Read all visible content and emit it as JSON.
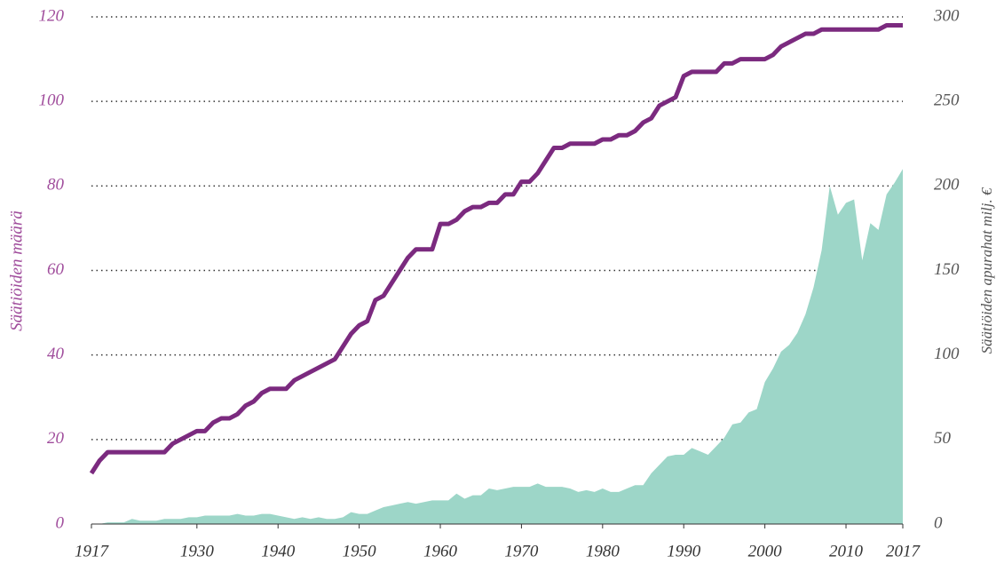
{
  "chart_data": {
    "type": "line-area",
    "y_label": "Säätiöiden määrä",
    "y2_label": "Säätiöiden apurahat milj. €",
    "x": [
      1917,
      1918,
      1919,
      1920,
      1921,
      1922,
      1923,
      1924,
      1925,
      1926,
      1927,
      1928,
      1929,
      1930,
      1931,
      1932,
      1933,
      1934,
      1935,
      1936,
      1937,
      1938,
      1939,
      1940,
      1941,
      1942,
      1943,
      1944,
      1945,
      1946,
      1947,
      1948,
      1949,
      1950,
      1951,
      1952,
      1953,
      1954,
      1955,
      1956,
      1957,
      1958,
      1959,
      1960,
      1961,
      1962,
      1963,
      1964,
      1965,
      1966,
      1967,
      1968,
      1969,
      1970,
      1971,
      1972,
      1973,
      1974,
      1975,
      1976,
      1977,
      1978,
      1979,
      1980,
      1981,
      1982,
      1983,
      1984,
      1985,
      1986,
      1987,
      1988,
      1989,
      1990,
      1991,
      1992,
      1993,
      1994,
      1995,
      1996,
      1997,
      1998,
      1999,
      2000,
      2001,
      2002,
      2003,
      2004,
      2005,
      2006,
      2007,
      2008,
      2009,
      2010,
      2011,
      2012,
      2013,
      2014,
      2015,
      2016,
      2017
    ],
    "series": [
      {
        "name": "Säätiöiden määrä",
        "color": "#7b2a7f",
        "kind": "line",
        "axis": "y",
        "values": [
          12,
          15,
          17,
          17,
          17,
          17,
          17,
          17,
          17,
          17,
          19,
          20,
          21,
          22,
          22,
          24,
          25,
          25,
          26,
          28,
          29,
          31,
          32,
          32,
          32,
          34,
          35,
          36,
          37,
          38,
          39,
          42,
          45,
          47,
          48,
          53,
          54,
          57,
          60,
          63,
          65,
          65,
          65,
          71,
          71,
          72,
          74,
          75,
          75,
          76,
          76,
          78,
          78,
          81,
          81,
          83,
          86,
          89,
          89,
          90,
          90,
          90,
          90,
          91,
          91,
          92,
          92,
          93,
          95,
          96,
          99,
          100,
          101,
          106,
          107,
          107,
          107,
          107,
          109,
          109,
          110,
          110,
          110,
          110,
          111,
          113,
          114,
          115,
          116,
          116,
          117,
          117,
          117,
          117,
          117,
          117,
          117,
          117,
          118,
          118,
          118
        ]
      },
      {
        "name": "Säätiöiden apurahat milj. €",
        "color": "#9dd6c8",
        "kind": "area",
        "axis": "y2",
        "values": [
          0,
          0,
          1,
          1,
          1,
          3,
          2,
          2,
          2,
          3,
          3,
          3,
          4,
          4,
          5,
          5,
          5,
          5,
          6,
          5,
          5,
          6,
          6,
          5,
          4,
          3,
          4,
          3,
          4,
          3,
          3,
          4,
          7,
          6,
          6,
          8,
          10,
          11,
          12,
          13,
          12,
          13,
          14,
          14,
          14,
          18,
          15,
          17,
          17,
          21,
          20,
          21,
          22,
          22,
          22,
          24,
          22,
          22,
          22,
          21,
          19,
          20,
          19,
          21,
          19,
          19,
          21,
          23,
          23,
          30,
          35,
          40,
          41,
          41,
          45,
          43,
          41,
          46,
          51,
          59,
          60,
          66,
          68,
          84,
          92,
          102,
          106,
          113,
          124,
          140,
          162,
          200,
          183,
          190,
          192,
          156,
          178,
          174,
          195,
          202,
          210
        ]
      }
    ],
    "xlim": [
      1917,
      2017
    ],
    "xticks": [
      1917,
      1930,
      1940,
      1950,
      1960,
      1970,
      1980,
      1990,
      2000,
      2010,
      2017
    ],
    "ylim": [
      0,
      120
    ],
    "yticks": [
      0,
      20,
      40,
      60,
      80,
      100,
      120
    ],
    "y2lim": [
      0,
      300
    ],
    "y2ticks": [
      0,
      50,
      100,
      150,
      200,
      250,
      300
    ],
    "grid": true
  }
}
